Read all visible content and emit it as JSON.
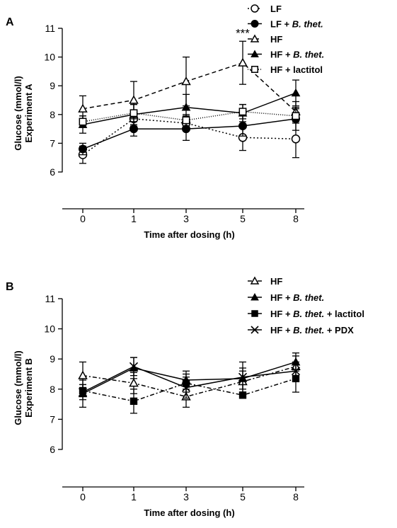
{
  "chart_data": [
    {
      "type": "line",
      "panel_label": "A",
      "xlabel": "Time after dosing (h)",
      "ylabel_line1": "Glucose (mmol/l)",
      "ylabel_line2": "Experiment A",
      "categories": [
        "0",
        "1",
        "3",
        "5",
        "8"
      ],
      "ylim": [
        6,
        11
      ],
      "yticks": [
        "6",
        "7",
        "8",
        "9",
        "10",
        "11"
      ],
      "grid": false,
      "legend_position": "top-right",
      "series": [
        {
          "name": "LF",
          "name_plain": "LF",
          "name_italic": "",
          "name_suffix": "",
          "values": [
            6.6,
            7.85,
            7.7,
            7.2,
            7.15
          ],
          "errors": [
            0.3,
            0.25,
            0.25,
            0.45,
            0.65
          ],
          "marker": "circle-open",
          "dash": "2,3",
          "color": "#000000"
        },
        {
          "name": "LF + B. thet.",
          "name_plain": "LF + ",
          "name_italic": "B. thet.",
          "name_suffix": "",
          "values": [
            6.8,
            7.5,
            7.5,
            7.6,
            7.85
          ],
          "errors": [
            0.2,
            0.25,
            0.4,
            0.35,
            0.4
          ],
          "marker": "circle-filled",
          "dash": "",
          "color": "#000000"
        },
        {
          "name": "HF",
          "name_plain": "HF",
          "name_italic": "",
          "name_suffix": "",
          "values": [
            8.2,
            8.5,
            9.15,
            9.8,
            8.1
          ],
          "errors": [
            0.45,
            0.65,
            0.85,
            0.75,
            0.35
          ],
          "marker": "triangle-open",
          "dash": "6,4",
          "color": "#000000"
        },
        {
          "name": "HF + B. thet.",
          "name_plain": "HF + ",
          "name_italic": "B. thet.",
          "name_suffix": "",
          "values": [
            7.65,
            8.0,
            8.25,
            8.05,
            8.75
          ],
          "errors": [
            0.3,
            0.35,
            0.45,
            0.3,
            0.45
          ],
          "marker": "triangle-filled",
          "dash": "",
          "color": "#000000"
        },
        {
          "name": "HF + lactitol",
          "name_plain": "HF + lactitol",
          "name_italic": "",
          "name_suffix": "",
          "values": [
            7.75,
            8.05,
            7.8,
            8.1,
            7.95
          ],
          "errors": [
            0.2,
            0.3,
            0.2,
            0.25,
            0.25
          ],
          "marker": "square-open",
          "dash": "1,2",
          "color": "#000000"
        }
      ],
      "annotations": [
        {
          "text": "***",
          "category": "5"
        }
      ]
    },
    {
      "type": "line",
      "panel_label": "B",
      "xlabel": "Time after dosing (h)",
      "ylabel_line1": "Glucose (mmol/l)",
      "ylabel_line2": "Experiment B",
      "categories": [
        "0",
        "1",
        "3",
        "5",
        "8"
      ],
      "ylim": [
        6,
        11
      ],
      "yticks": [
        "6",
        "7",
        "8",
        "9",
        "10",
        "11"
      ],
      "grid": false,
      "legend_position": "top-right",
      "series": [
        {
          "name": "HF",
          "name_plain": "HF",
          "name_italic": "",
          "name_suffix": "",
          "values": [
            8.45,
            8.2,
            7.75,
            8.25,
            8.75
          ],
          "errors": [
            0.45,
            0.35,
            0.35,
            0.35,
            0.35
          ],
          "marker": "triangle-open",
          "dash": "6,3,2,3",
          "color": "#000000"
        },
        {
          "name": "HF + B. thet.",
          "name_plain": "HF + ",
          "name_italic": "B. thet.",
          "name_suffix": "",
          "values": [
            7.85,
            8.7,
            8.3,
            8.35,
            8.9
          ],
          "errors": [
            0.45,
            0.35,
            0.3,
            0.35,
            0.3
          ],
          "marker": "triangle-filled",
          "dash": "",
          "color": "#000000"
        },
        {
          "name": "HF + B. thet. + lactitol",
          "name_plain": "HF + ",
          "name_italic": "B. thet.",
          "name_suffix": " + lactitol",
          "values": [
            7.95,
            7.6,
            8.2,
            7.8,
            8.35
          ],
          "errors": [
            0.2,
            0.4,
            0.3,
            0.1,
            0.45
          ],
          "marker": "square-filled",
          "dash": "6,3,2,3",
          "color": "#000000"
        },
        {
          "name": "HF + B. thet. + PDX",
          "name_plain": "HF + ",
          "name_italic": "B. thet.",
          "name_suffix": " + PDX",
          "values": [
            7.9,
            8.75,
            8.05,
            8.4,
            8.6
          ],
          "errors": [
            0.25,
            0.3,
            0.35,
            0.5,
            0.3
          ],
          "marker": "x",
          "dash": "",
          "color": "#000000"
        }
      ],
      "annotations": []
    }
  ]
}
